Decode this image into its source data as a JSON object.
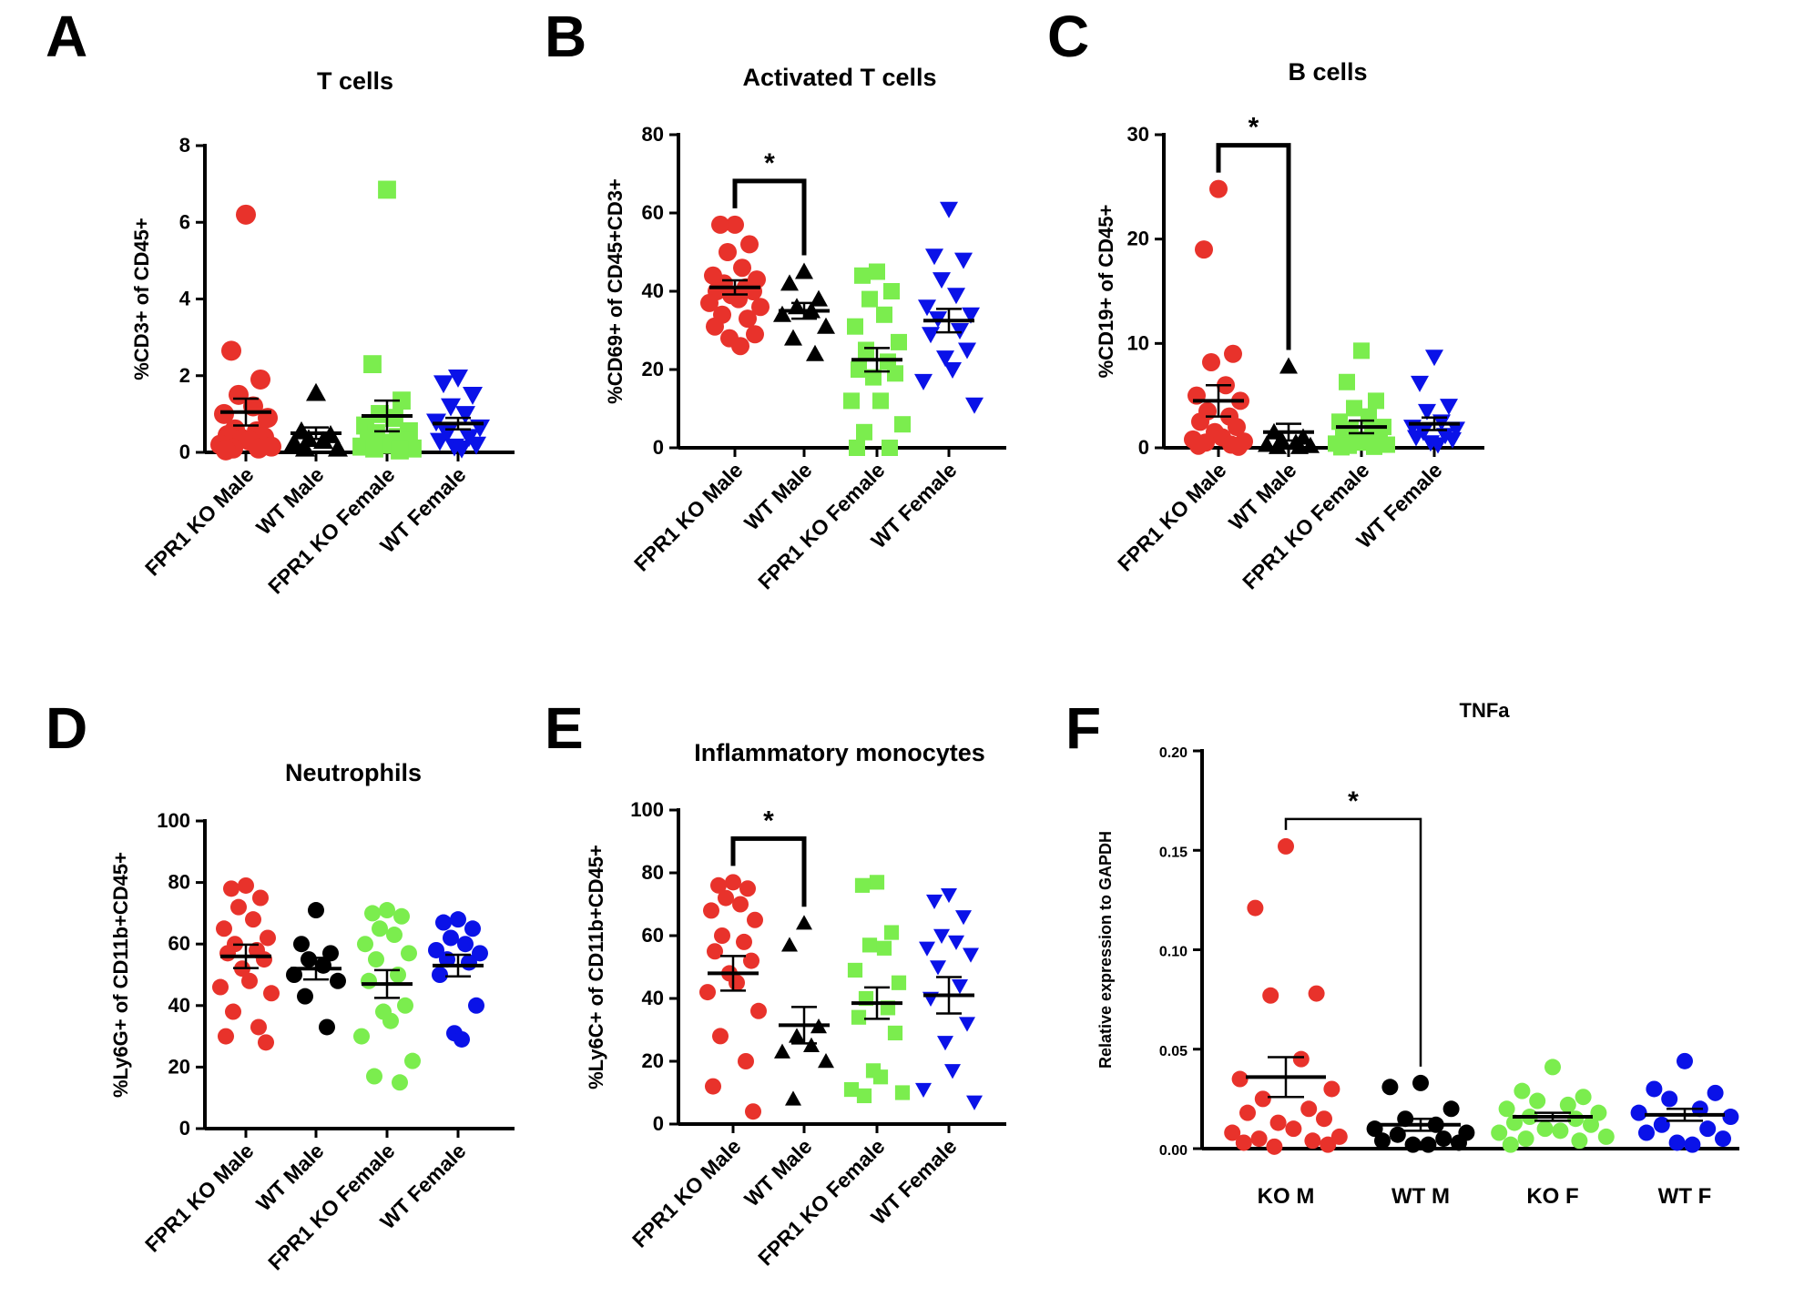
{
  "colors": {
    "ko_male": "#e8322b",
    "wt_male": "#000000",
    "ko_female": "#7bed4e",
    "wt_female": "#0a12e8"
  },
  "chart_data": [
    {
      "panel": "A",
      "type": "scatter",
      "title": "T cells",
      "xlabel": "",
      "ylabel": "%CD3+ of CD45+",
      "ylim": [
        0,
        8
      ],
      "yticks": [
        0,
        2,
        4,
        6,
        8
      ],
      "categories": [
        "FPR1 KO Male",
        "WT Male",
        "FPR1 KO Female",
        "WT Female"
      ],
      "markers": [
        "circle",
        "triangle-up",
        "square",
        "triangle-down"
      ],
      "series": [
        {
          "name": "FPR1 KO Male",
          "mean": 1.05,
          "sem": 0.35,
          "values": [
            6.2,
            2.65,
            1.9,
            1.5,
            1.2,
            1.0,
            0.9,
            0.6,
            0.55,
            0.45,
            0.4,
            0.35,
            0.3,
            0.2,
            0.15,
            0.1,
            0.1,
            0.05
          ]
        },
        {
          "name": "WT Male",
          "mean": 0.5,
          "sem": 0.15,
          "values": [
            1.55,
            0.55,
            0.45,
            0.35,
            0.3,
            0.25,
            0.1,
            0.1
          ]
        },
        {
          "name": "FPR1 KO Female",
          "mean": 0.95,
          "sem": 0.4,
          "values": [
            6.85,
            2.3,
            1.35,
            1.0,
            0.9,
            0.7,
            0.55,
            0.5,
            0.4,
            0.35,
            0.3,
            0.25,
            0.2,
            0.15,
            0.1,
            0.1,
            0.05
          ]
        },
        {
          "name": "WT Female",
          "mean": 0.75,
          "sem": 0.15,
          "values": [
            1.95,
            1.8,
            1.5,
            1.2,
            1.0,
            0.8,
            0.65,
            0.5,
            0.4,
            0.3,
            0.2,
            0.15,
            0.1
          ]
        }
      ],
      "significance": []
    },
    {
      "panel": "B",
      "type": "scatter",
      "title": "Activated T cells",
      "xlabel": "",
      "ylabel": "%CD69+ of CD45+CD3+",
      "ylim": [
        0,
        80
      ],
      "yticks": [
        0,
        20,
        40,
        60,
        80
      ],
      "categories": [
        "FPR1 KO Male",
        "WT Male",
        "FPR1 KO Female",
        "WT Female"
      ],
      "markers": [
        "circle",
        "triangle-up",
        "square",
        "triangle-down"
      ],
      "series": [
        {
          "name": "FPR1 KO Male",
          "mean": 41,
          "sem": 1.8,
          "values": [
            57,
            57,
            52,
            50,
            46,
            44,
            43,
            42,
            41,
            40,
            40,
            39,
            38,
            37,
            36,
            34,
            33,
            31,
            29,
            28,
            26
          ]
        },
        {
          "name": "WT Male",
          "mean": 35,
          "sem": 2.0,
          "values": [
            45,
            42,
            38,
            36,
            35,
            34,
            31,
            28,
            24
          ]
        },
        {
          "name": "FPR1 KO Female",
          "mean": 22.5,
          "sem": 3.0,
          "values": [
            45,
            44,
            40,
            38,
            34,
            31,
            27,
            25,
            22,
            20,
            19,
            18,
            12,
            12,
            6,
            4,
            0,
            0
          ]
        },
        {
          "name": "WT Female",
          "mean": 32.5,
          "sem": 3.0,
          "values": [
            61,
            49,
            48,
            43,
            39,
            36,
            34,
            33,
            30,
            29,
            25,
            23,
            20,
            17,
            11
          ]
        }
      ],
      "significance": [
        {
          "from": 0,
          "to": 1,
          "label": "*"
        }
      ]
    },
    {
      "panel": "C",
      "type": "scatter",
      "title": "B cells",
      "xlabel": "",
      "ylabel": "%CD19+ of CD45+",
      "ylim": [
        0,
        30
      ],
      "yticks": [
        0,
        10,
        20,
        30
      ],
      "categories": [
        "FPR1 KO Male",
        "WT Male",
        "FPR1 KO Female",
        "WT Female"
      ],
      "markers": [
        "circle",
        "triangle-up",
        "square",
        "triangle-down"
      ],
      "series": [
        {
          "name": "FPR1 KO Male",
          "mean": 4.5,
          "sem": 1.5,
          "values": [
            24.8,
            19.0,
            9.0,
            8.2,
            6.0,
            5.0,
            4.5,
            3.5,
            3.0,
            2.5,
            2.0,
            1.5,
            1.0,
            0.8,
            0.6,
            0.5,
            0.3,
            0.2,
            0.1
          ]
        },
        {
          "name": "WT Male",
          "mean": 1.5,
          "sem": 0.8,
          "values": [
            7.8,
            1.5,
            1.0,
            0.8,
            0.5,
            0.3,
            0.2,
            0.1,
            0.1
          ]
        },
        {
          "name": "FPR1 KO Female",
          "mean": 2.0,
          "sem": 0.6,
          "values": [
            9.3,
            6.3,
            4.5,
            3.8,
            3.0,
            2.5,
            2.0,
            1.8,
            1.5,
            1.2,
            1.0,
            0.8,
            0.5,
            0.4,
            0.3,
            0.2,
            0.1,
            0.05
          ]
        },
        {
          "name": "WT Female",
          "mean": 2.3,
          "sem": 0.6,
          "values": [
            8.7,
            6.2,
            4.0,
            3.5,
            2.5,
            2.0,
            1.8,
            1.5,
            1.2,
            1.0,
            0.8,
            0.5,
            0.3
          ]
        }
      ],
      "significance": [
        {
          "from": 0,
          "to": 1,
          "label": "*"
        }
      ]
    },
    {
      "panel": "D",
      "type": "scatter",
      "title": "Neutrophils",
      "xlabel": "",
      "ylabel": "%Ly6G+ of CD11b+CD45+",
      "ylim": [
        0,
        100
      ],
      "yticks": [
        0,
        20,
        40,
        60,
        80,
        100
      ],
      "categories": [
        "FPR1 KO Male",
        "WT Male",
        "FPR1 KO Female",
        "WT Female"
      ],
      "markers": [
        "circle",
        "circle",
        "circle",
        "circle"
      ],
      "series": [
        {
          "name": "FPR1 KO Male",
          "mean": 56,
          "sem": 3.8,
          "values": [
            79,
            78,
            75,
            72,
            68,
            65,
            62,
            60,
            58,
            57,
            55,
            52,
            48,
            46,
            44,
            38,
            33,
            30,
            28
          ]
        },
        {
          "name": "WT Male",
          "mean": 52,
          "sem": 3.5,
          "values": [
            71,
            60,
            57,
            55,
            53,
            50,
            48,
            43,
            33
          ]
        },
        {
          "name": "FPR1 KO Female",
          "mean": 47,
          "sem": 4.5,
          "values": [
            71,
            70,
            69,
            65,
            63,
            60,
            57,
            55,
            50,
            48,
            40,
            38,
            35,
            30,
            22,
            17,
            15
          ]
        },
        {
          "name": "WT Female",
          "mean": 53,
          "sem": 3.5,
          "values": [
            68,
            67,
            65,
            62,
            60,
            58,
            57,
            55,
            54,
            50,
            40,
            31,
            29
          ]
        }
      ],
      "significance": []
    },
    {
      "panel": "E",
      "type": "scatter",
      "title": "Inflammatory monocytes",
      "xlabel": "",
      "ylabel": "%Ly6C+ of CD11b+CD45+",
      "ylim": [
        0,
        100
      ],
      "yticks": [
        0,
        20,
        40,
        60,
        80,
        100
      ],
      "categories": [
        "FPR1 KO Male",
        "WT Male",
        "FPR1 KO Female",
        "WT Female"
      ],
      "markers": [
        "circle",
        "triangle-up",
        "square",
        "triangle-down"
      ],
      "series": [
        {
          "name": "FPR1 KO Male",
          "mean": 48,
          "sem": 5.5,
          "values": [
            77,
            76,
            75,
            72,
            70,
            68,
            65,
            60,
            58,
            55,
            52,
            48,
            45,
            42,
            36,
            28,
            20,
            12,
            4
          ]
        },
        {
          "name": "WT Male",
          "mean": 31.5,
          "sem": 5.8,
          "values": [
            64,
            57,
            31,
            28,
            25,
            23,
            20,
            8
          ]
        },
        {
          "name": "FPR1 KO Female",
          "mean": 38.5,
          "sem": 5.0,
          "values": [
            77,
            76,
            61,
            57,
            56,
            49,
            45,
            40,
            37,
            34,
            29,
            17,
            15,
            11,
            10,
            9
          ]
        },
        {
          "name": "WT Female",
          "mean": 41,
          "sem": 5.8,
          "values": [
            73,
            71,
            66,
            60,
            58,
            56,
            54,
            50,
            44,
            40,
            32,
            26,
            17,
            11,
            7
          ]
        }
      ],
      "significance": [
        {
          "from": 0,
          "to": 1,
          "label": "*"
        }
      ]
    },
    {
      "panel": "F",
      "type": "scatter",
      "title": "TNFa",
      "xlabel": "",
      "ylabel": "Relative expression to GAPDH",
      "ylim": [
        0,
        0.2
      ],
      "yticks": [
        0.0,
        0.05,
        0.1,
        0.15,
        0.2
      ],
      "ytick_labels": [
        "0.00",
        "0.05",
        "0.10",
        "0.15",
        "0.20"
      ],
      "categories": [
        "KO M",
        "WT M",
        "KO F",
        "WT F"
      ],
      "markers": [
        "circle",
        "circle",
        "circle",
        "circle"
      ],
      "series": [
        {
          "name": "KO M",
          "mean": 0.036,
          "sem": 0.01,
          "values": [
            0.152,
            0.121,
            0.078,
            0.077,
            0.045,
            0.035,
            0.03,
            0.025,
            0.02,
            0.018,
            0.015,
            0.013,
            0.01,
            0.008,
            0.006,
            0.005,
            0.004,
            0.003,
            0.002,
            0.001
          ]
        },
        {
          "name": "WT M",
          "mean": 0.012,
          "sem": 0.003,
          "values": [
            0.033,
            0.031,
            0.02,
            0.015,
            0.012,
            0.01,
            0.008,
            0.007,
            0.005,
            0.004,
            0.003,
            0.002,
            0.002
          ]
        },
        {
          "name": "KO F",
          "mean": 0.016,
          "sem": 0.002,
          "values": [
            0.041,
            0.029,
            0.026,
            0.024,
            0.022,
            0.02,
            0.018,
            0.016,
            0.015,
            0.013,
            0.012,
            0.01,
            0.009,
            0.008,
            0.006,
            0.005,
            0.004,
            0.002
          ]
        },
        {
          "name": "WT F",
          "mean": 0.017,
          "sem": 0.003,
          "values": [
            0.044,
            0.03,
            0.028,
            0.025,
            0.02,
            0.018,
            0.016,
            0.012,
            0.01,
            0.008,
            0.005,
            0.003,
            0.002
          ]
        }
      ],
      "significance": [
        {
          "from": 0,
          "to": 1,
          "label": "*"
        }
      ]
    }
  ]
}
